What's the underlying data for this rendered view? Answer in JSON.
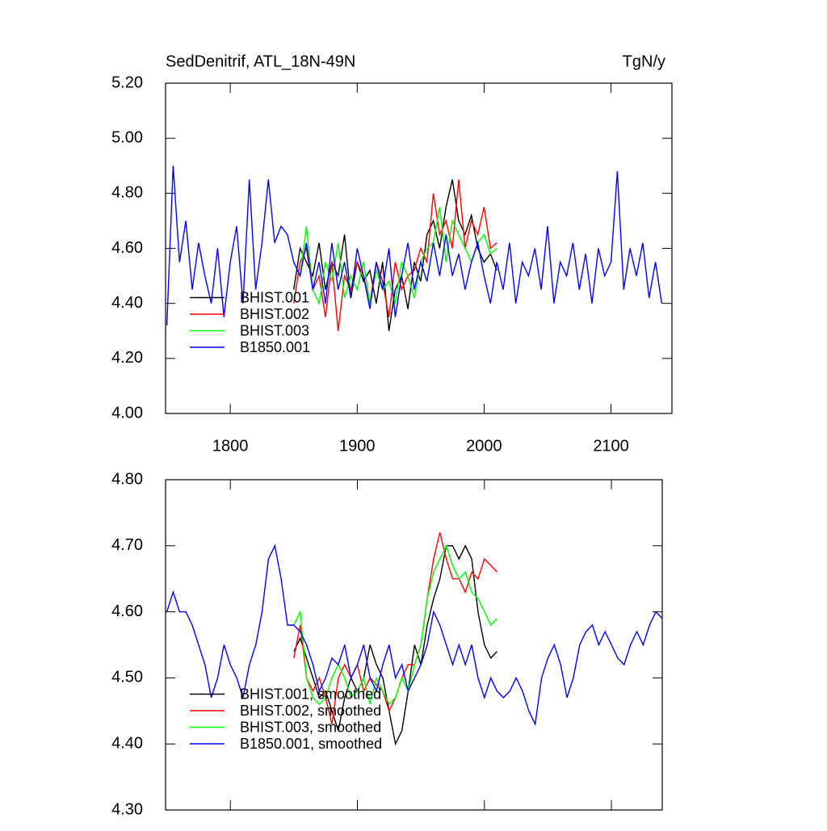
{
  "chart_data": [
    {
      "type": "line",
      "title": "SedDenitrif, ATL_18N-49N",
      "units": "TgN/y",
      "x": [
        1750,
        1755,
        1760,
        1765,
        1770,
        1775,
        1780,
        1785,
        1790,
        1795,
        1800,
        1805,
        1810,
        1815,
        1820,
        1825,
        1830,
        1835,
        1840,
        1845,
        1850,
        1855,
        1860,
        1865,
        1870,
        1875,
        1880,
        1885,
        1890,
        1895,
        1900,
        1905,
        1910,
        1915,
        1920,
        1925,
        1930,
        1935,
        1940,
        1945,
        1950,
        1955,
        1960,
        1965,
        1970,
        1975,
        1980,
        1985,
        1990,
        1995,
        2000,
        2005,
        2010,
        2015,
        2020,
        2025,
        2030,
        2035,
        2040,
        2045,
        2050,
        2055,
        2060,
        2065,
        2070,
        2075,
        2080,
        2085,
        2090,
        2095,
        2100,
        2105,
        2110,
        2115,
        2120,
        2125,
        2130,
        2135,
        2140
      ],
      "xlim": [
        1749,
        2148
      ],
      "xticks": [
        1800,
        1900,
        2000,
        2100
      ],
      "xtick_labels": true,
      "ylim": [
        4.0,
        5.2
      ],
      "yticks": [
        {
          "value": 4.0,
          "label": "4.00"
        },
        {
          "value": 4.2,
          "label": "4.20"
        },
        {
          "value": 4.4,
          "label": "4.40"
        },
        {
          "value": 4.6,
          "label": "4.60"
        },
        {
          "value": 4.8,
          "label": "4.80"
        },
        {
          "value": 5.0,
          "label": "5.00"
        },
        {
          "value": 5.2,
          "label": "5.20"
        }
      ],
      "legend": "lower left",
      "series": [
        {
          "name": "BHIST.001",
          "color": "#000000",
          "values": [
            null,
            null,
            null,
            null,
            null,
            null,
            null,
            null,
            null,
            null,
            null,
            null,
            null,
            null,
            null,
            null,
            null,
            null,
            null,
            null,
            4.45,
            4.6,
            4.55,
            4.5,
            4.62,
            4.45,
            4.55,
            4.5,
            4.65,
            4.42,
            4.55,
            4.48,
            4.52,
            4.4,
            4.55,
            4.3,
            4.45,
            4.5,
            4.38,
            4.55,
            4.48,
            4.65,
            4.7,
            4.6,
            4.75,
            4.85,
            4.7,
            4.65,
            4.72,
            4.6,
            4.55,
            4.58,
            4.52,
            null,
            null,
            null,
            null,
            null,
            null,
            null,
            null,
            null,
            null,
            null,
            null,
            null,
            null,
            null,
            null,
            null,
            null,
            null,
            null,
            null,
            null,
            null,
            null,
            null,
            null
          ]
        },
        {
          "name": "BHIST.002",
          "color": "#ff0000",
          "values": [
            null,
            null,
            null,
            null,
            null,
            null,
            null,
            null,
            null,
            null,
            null,
            null,
            null,
            null,
            null,
            null,
            null,
            null,
            null,
            null,
            4.4,
            4.55,
            4.6,
            4.45,
            4.5,
            4.35,
            4.55,
            4.3,
            4.5,
            4.45,
            4.55,
            4.5,
            4.4,
            4.55,
            4.48,
            4.35,
            4.55,
            4.45,
            4.5,
            4.52,
            4.6,
            4.55,
            4.8,
            4.65,
            4.7,
            4.6,
            4.85,
            4.6,
            4.7,
            4.65,
            4.75,
            4.6,
            4.62,
            null,
            null,
            null,
            null,
            null,
            null,
            null,
            null,
            null,
            null,
            null,
            null,
            null,
            null,
            null,
            null,
            null,
            null,
            null,
            null,
            null,
            null,
            null,
            null,
            null,
            null
          ]
        },
        {
          "name": "BHIST.003",
          "color": "#00ff00",
          "values": [
            null,
            null,
            null,
            null,
            null,
            null,
            null,
            null,
            null,
            null,
            null,
            null,
            null,
            null,
            null,
            null,
            null,
            null,
            null,
            null,
            4.55,
            4.5,
            4.68,
            4.45,
            4.4,
            4.55,
            4.48,
            4.62,
            4.42,
            4.5,
            4.45,
            4.55,
            4.4,
            4.52,
            4.45,
            4.48,
            4.4,
            4.55,
            4.5,
            4.42,
            4.55,
            4.6,
            4.62,
            4.75,
            4.55,
            4.7,
            4.65,
            4.6,
            4.55,
            4.62,
            4.65,
            4.58,
            4.6,
            null,
            null,
            null,
            null,
            null,
            null,
            null,
            null,
            null,
            null,
            null,
            null,
            null,
            null,
            null,
            null,
            null,
            null,
            null,
            null,
            null,
            null,
            null,
            null,
            null,
            null
          ]
        },
        {
          "name": "B1850.001",
          "color": "#0000ff",
          "values": [
            4.32,
            4.9,
            4.55,
            4.7,
            4.45,
            4.62,
            4.5,
            4.4,
            4.6,
            4.35,
            4.55,
            4.68,
            4.4,
            4.85,
            4.45,
            4.62,
            4.85,
            4.62,
            4.68,
            4.65,
            4.55,
            4.5,
            4.62,
            4.45,
            4.55,
            4.4,
            4.62,
            4.45,
            4.55,
            4.42,
            4.6,
            4.5,
            4.38,
            4.55,
            4.45,
            4.6,
            4.35,
            4.5,
            4.62,
            4.45,
            4.55,
            4.48,
            4.62,
            4.5,
            4.65,
            4.5,
            4.58,
            4.45,
            4.55,
            4.62,
            4.5,
            4.4,
            4.55,
            4.45,
            4.62,
            4.4,
            4.55,
            4.5,
            4.6,
            4.45,
            4.68,
            4.4,
            4.55,
            4.5,
            4.62,
            4.45,
            4.58,
            4.4,
            4.6,
            4.5,
            4.55,
            4.88,
            4.45,
            4.6,
            4.5,
            4.62,
            4.42,
            4.55,
            4.4
          ]
        }
      ]
    },
    {
      "type": "line",
      "x": [
        1750,
        1755,
        1760,
        1765,
        1770,
        1775,
        1780,
        1785,
        1790,
        1795,
        1800,
        1805,
        1810,
        1815,
        1820,
        1825,
        1830,
        1835,
        1840,
        1845,
        1850,
        1855,
        1860,
        1865,
        1870,
        1875,
        1880,
        1885,
        1890,
        1895,
        1900,
        1905,
        1910,
        1915,
        1920,
        1925,
        1930,
        1935,
        1940,
        1945,
        1950,
        1955,
        1960,
        1965,
        1970,
        1975,
        1980,
        1985,
        1990,
        1995,
        2000,
        2005,
        2010,
        2015,
        2020,
        2025,
        2030,
        2035,
        2040,
        2045,
        2050,
        2055,
        2060,
        2065,
        2070,
        2075,
        2080,
        2085,
        2090,
        2095,
        2100,
        2105,
        2110,
        2115,
        2120,
        2125,
        2130,
        2135,
        2140
      ],
      "xlim": [
        1749,
        2140
      ],
      "xticks": [
        1800,
        1900,
        2000,
        2100
      ],
      "xtick_labels": false,
      "ylim": [
        4.3,
        4.8
      ],
      "yticks": [
        {
          "value": 4.3,
          "label": "4.30"
        },
        {
          "value": 4.4,
          "label": "4.40"
        },
        {
          "value": 4.5,
          "label": "4.50"
        },
        {
          "value": 4.6,
          "label": "4.60"
        },
        {
          "value": 4.7,
          "label": "4.70"
        },
        {
          "value": 4.8,
          "label": "4.80"
        }
      ],
      "legend": "lower left",
      "series": [
        {
          "name": "BHIST.001, smoothed",
          "color": "#000000",
          "values": [
            null,
            null,
            null,
            null,
            null,
            null,
            null,
            null,
            null,
            null,
            null,
            null,
            null,
            null,
            null,
            null,
            null,
            null,
            null,
            null,
            4.54,
            4.56,
            4.53,
            4.5,
            4.47,
            4.48,
            4.45,
            4.42,
            4.47,
            4.5,
            4.48,
            4.5,
            4.55,
            4.52,
            4.5,
            4.45,
            4.4,
            4.42,
            4.48,
            4.55,
            4.52,
            4.58,
            4.62,
            4.65,
            4.7,
            4.7,
            4.68,
            4.7,
            4.68,
            4.6,
            4.55,
            4.53,
            4.54,
            null,
            null,
            null,
            null,
            null,
            null,
            null,
            null,
            null,
            null,
            null,
            null,
            null,
            null,
            null,
            null,
            null,
            null,
            null,
            null,
            null,
            null,
            null,
            null,
            null,
            null
          ]
        },
        {
          "name": "BHIST.002, smoothed",
          "color": "#ff0000",
          "values": [
            null,
            null,
            null,
            null,
            null,
            null,
            null,
            null,
            null,
            null,
            null,
            null,
            null,
            null,
            null,
            null,
            null,
            null,
            null,
            null,
            4.53,
            4.58,
            4.5,
            4.48,
            4.5,
            4.47,
            4.43,
            4.5,
            4.52,
            4.5,
            4.52,
            4.48,
            4.5,
            4.49,
            4.48,
            4.45,
            4.47,
            4.5,
            4.52,
            4.52,
            4.55,
            4.62,
            4.68,
            4.72,
            4.68,
            4.65,
            4.65,
            4.63,
            4.66,
            4.65,
            4.68,
            4.67,
            4.66,
            null,
            null,
            null,
            null,
            null,
            null,
            null,
            null,
            null,
            null,
            null,
            null,
            null,
            null,
            null,
            null,
            null,
            null,
            null,
            null,
            null,
            null,
            null,
            null,
            null,
            null
          ]
        },
        {
          "name": "BHIST.003, smoothed",
          "color": "#00ff00",
          "values": [
            null,
            null,
            null,
            null,
            null,
            null,
            null,
            null,
            null,
            null,
            null,
            null,
            null,
            null,
            null,
            null,
            null,
            null,
            null,
            null,
            4.58,
            4.6,
            4.5,
            4.47,
            4.46,
            4.47,
            4.5,
            4.52,
            4.5,
            4.47,
            4.48,
            4.5,
            4.46,
            4.5,
            4.48,
            4.46,
            4.47,
            4.5,
            4.48,
            4.52,
            4.55,
            4.62,
            4.66,
            4.68,
            4.7,
            4.67,
            4.65,
            4.66,
            4.63,
            4.62,
            4.6,
            4.58,
            4.59,
            null,
            null,
            null,
            null,
            null,
            null,
            null,
            null,
            null,
            null,
            null,
            null,
            null,
            null,
            null,
            null,
            null,
            null,
            null,
            null,
            null,
            null,
            null,
            null,
            null,
            null
          ]
        },
        {
          "name": "B1850.001, smoothed",
          "color": "#0000ff",
          "values": [
            4.6,
            4.63,
            4.6,
            4.6,
            4.58,
            4.55,
            4.52,
            4.47,
            4.5,
            4.55,
            4.52,
            4.5,
            4.47,
            4.52,
            4.55,
            4.6,
            4.68,
            4.7,
            4.65,
            4.58,
            4.58,
            4.57,
            4.55,
            4.52,
            4.48,
            4.5,
            4.53,
            4.52,
            4.55,
            4.5,
            4.52,
            4.55,
            4.5,
            4.48,
            4.52,
            4.55,
            4.5,
            4.52,
            4.48,
            4.5,
            4.52,
            4.55,
            4.6,
            4.58,
            4.55,
            4.52,
            4.55,
            4.52,
            4.55,
            4.5,
            4.47,
            4.5,
            4.48,
            4.47,
            4.48,
            4.5,
            4.48,
            4.45,
            4.43,
            4.5,
            4.53,
            4.55,
            4.52,
            4.47,
            4.5,
            4.55,
            4.57,
            4.58,
            4.55,
            4.57,
            4.55,
            4.53,
            4.52,
            4.55,
            4.57,
            4.55,
            4.58,
            4.6,
            4.59
          ]
        }
      ]
    }
  ]
}
